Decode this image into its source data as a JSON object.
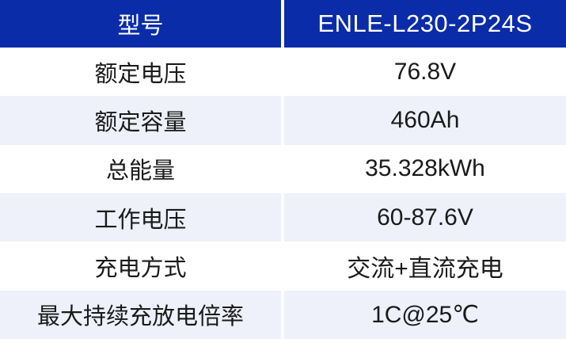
{
  "colors": {
    "header_bg": "#0A2CA8",
    "header_text": "#FFFFFF",
    "row_alt_bg": "#EEF1F9",
    "row_bg": "#FFFFFF",
    "body_text": "#1A1A1A",
    "divider": "#FFFFFF"
  },
  "table": {
    "header": {
      "label": "型号",
      "value": "ENLE-L230-2P24S"
    },
    "rows": [
      {
        "label": "额定电压",
        "value": "76.8V"
      },
      {
        "label": "额定容量",
        "value": "460Ah"
      },
      {
        "label": "总能量",
        "value": "35.328kWh"
      },
      {
        "label": "工作电压",
        "value": "60-87.6V"
      },
      {
        "label": "充电方式",
        "value": "交流+直流充电"
      },
      {
        "label": "最大持续充放电倍率",
        "value": "1C@25℃"
      }
    ]
  }
}
